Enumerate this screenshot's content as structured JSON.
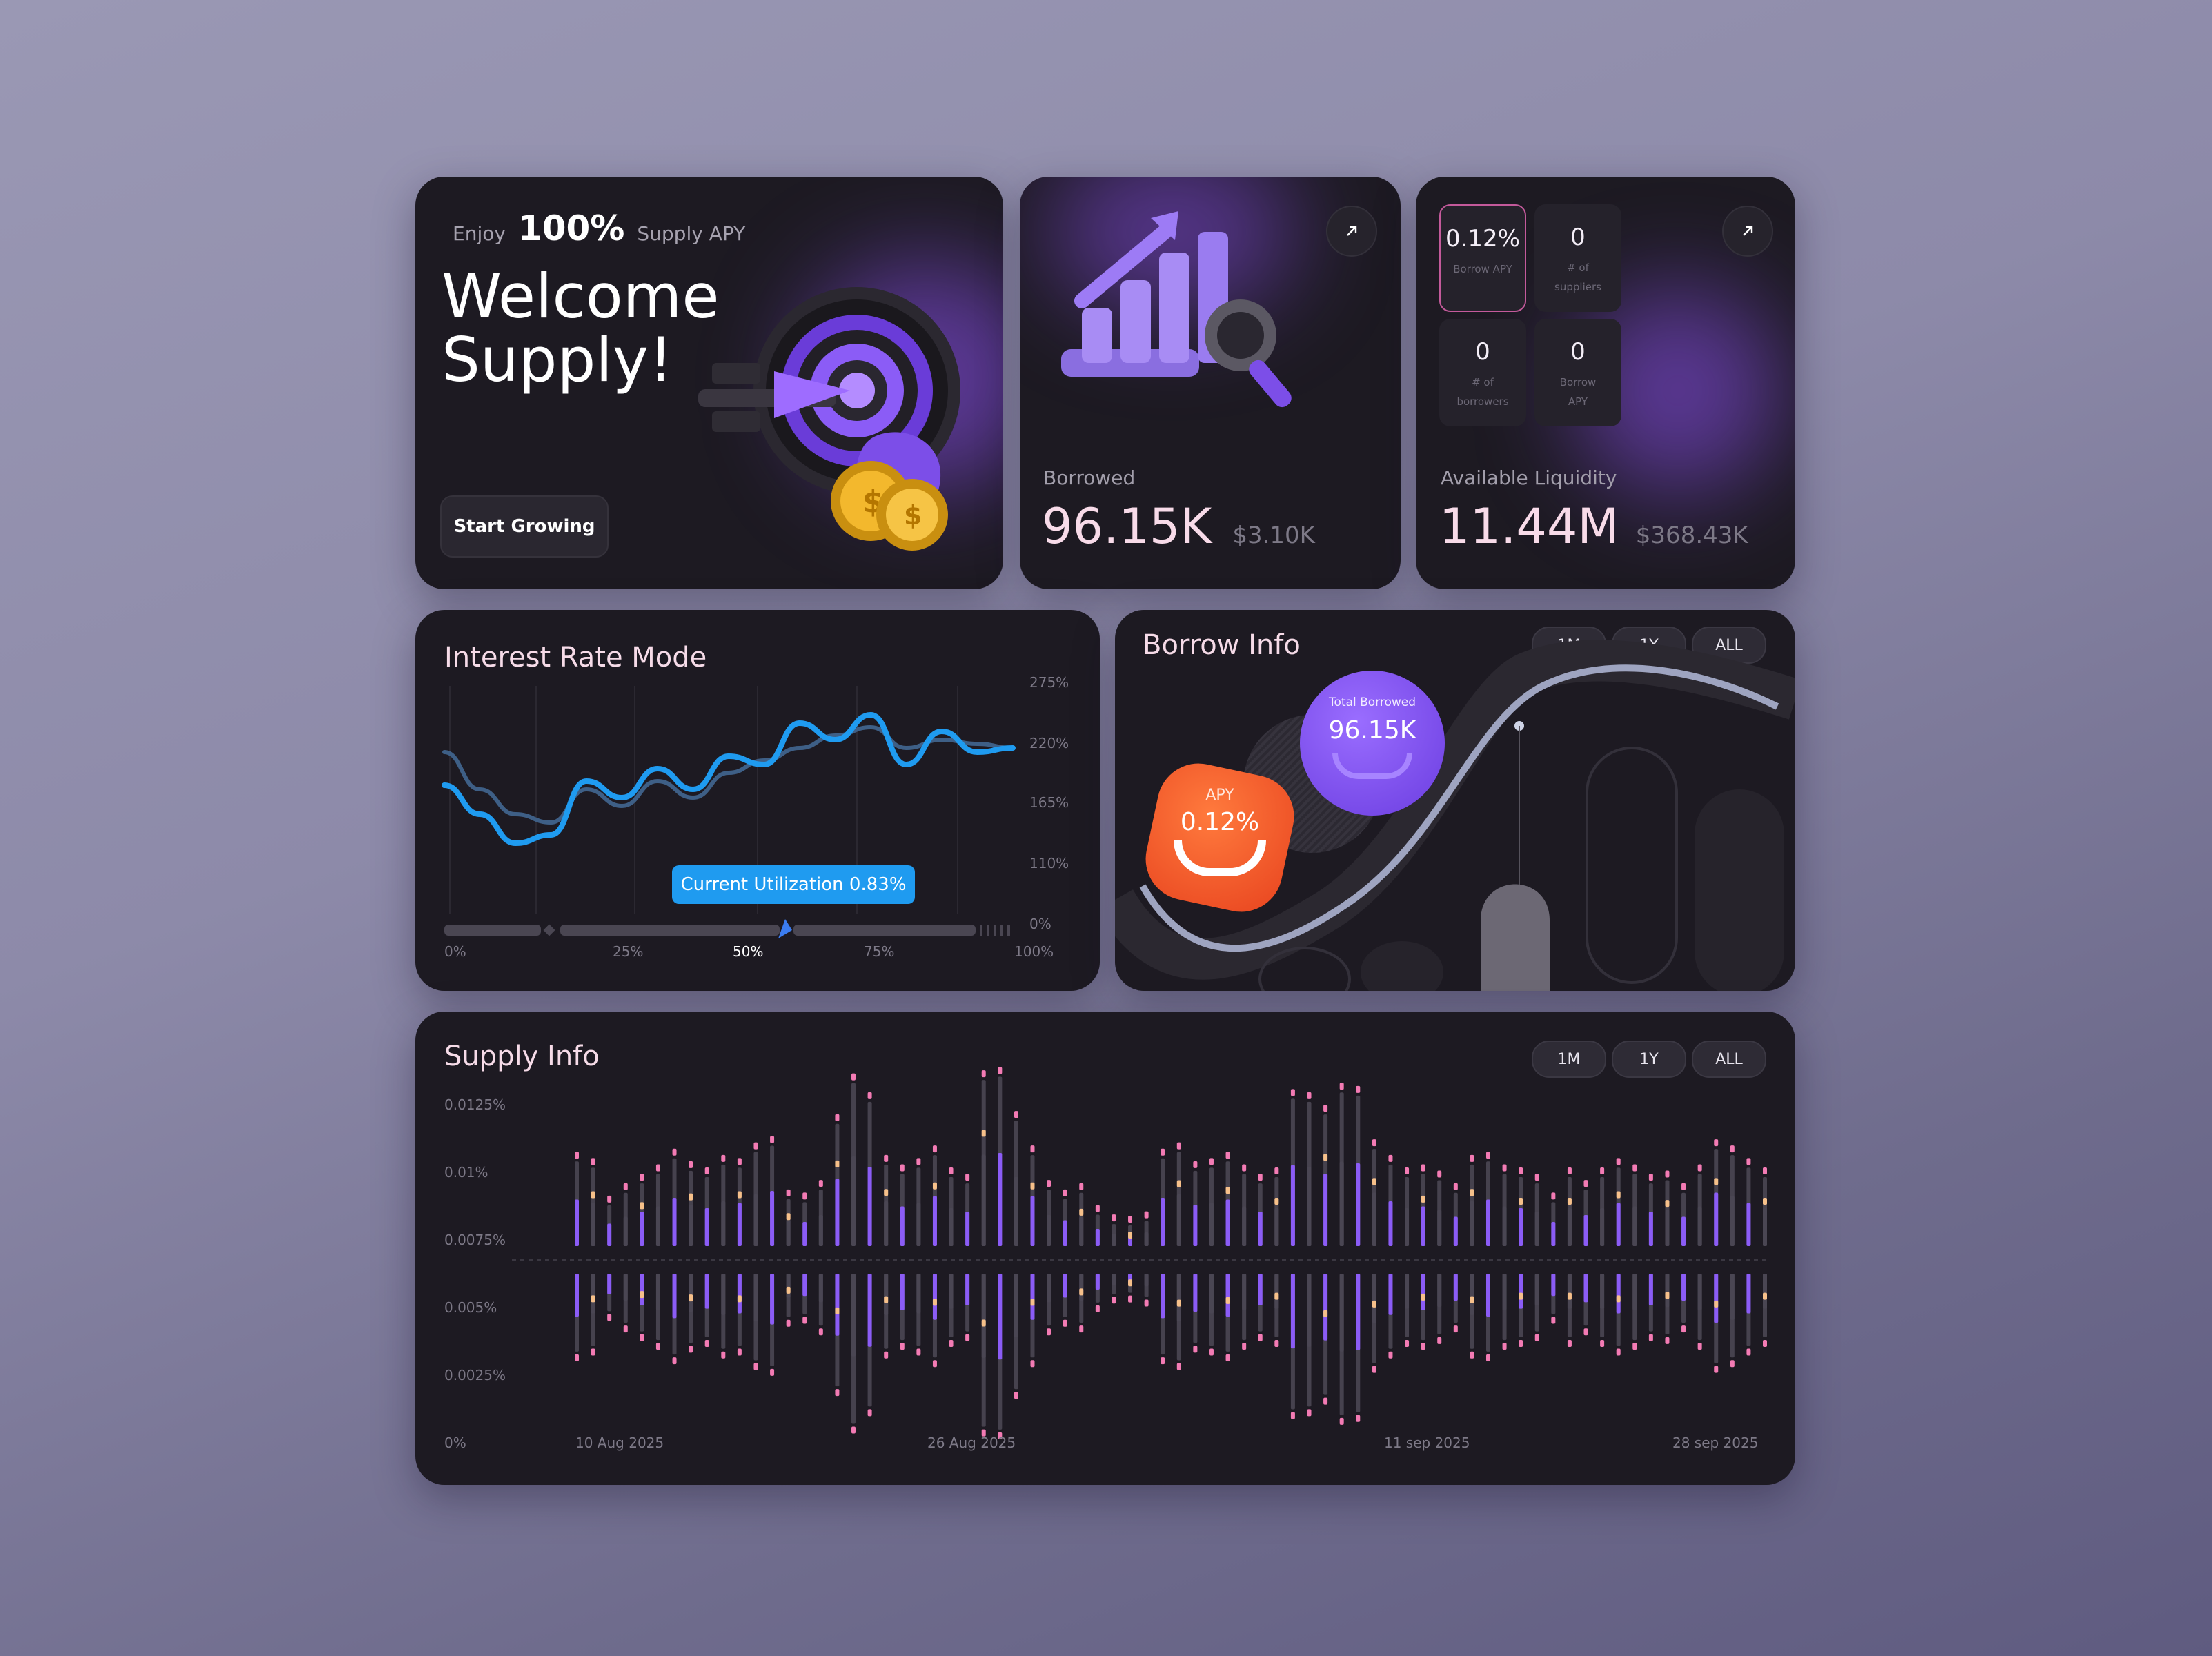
{
  "welcome": {
    "enjoy": "Enjoy",
    "apy_percent": "100%",
    "apy_label": "Supply APY",
    "title_line1": "Welcome",
    "title_line2": "Supply!",
    "button": "Start Growing"
  },
  "borrowed": {
    "label": "Borrowed",
    "value": "96.15K",
    "usd": "$3.10K"
  },
  "liquidity": {
    "label": "Available Liquidity",
    "value": "11.44M",
    "usd": "$368.43K",
    "stats": [
      {
        "value": "0.12%",
        "label": "Borrow APY"
      },
      {
        "value": "0",
        "label": "# of suppliers"
      },
      {
        "value": "0",
        "label": "# of borrowers"
      },
      {
        "value": "0",
        "label": "Borrow APY"
      }
    ]
  },
  "interest": {
    "title": "Interest Rate Mode",
    "tooltip": "Current Utilization 0.83%",
    "y_ticks": [
      "275%",
      "220%",
      "165%",
      "110%",
      "0%"
    ],
    "x_ticks": [
      "0%",
      "25%",
      "50%",
      "75%",
      "100%"
    ]
  },
  "borrow_info": {
    "title": "Borrow Info",
    "ranges": [
      "1M",
      "1Y",
      "ALL"
    ],
    "total_label": "Total Borrowed",
    "total_value": "96.15K",
    "apy_label": "APY",
    "apy_value": "0.12%"
  },
  "supply_info": {
    "title": "Supply Info",
    "ranges": [
      "1M",
      "1Y",
      "ALL"
    ],
    "y_ticks": [
      "0.0125%",
      "0.01%",
      "0.0075%",
      "0.005%",
      "0.0025%",
      "0%"
    ],
    "x_ticks": [
      "10 Aug 2025",
      "26 Aug 2025",
      "11 sep 2025",
      "28 sep 2025"
    ]
  },
  "colors": {
    "accent_purple": "#8b5cf6",
    "accent_blue": "#1f9bf0",
    "accent_orange": "#ff5a2c",
    "pink_value": "#f8d8e8"
  },
  "chart_data": [
    {
      "type": "line",
      "title": "Interest Rate Mode",
      "xlabel": "",
      "ylabel": "",
      "x_ticks": [
        "0%",
        "25%",
        "50%",
        "75%",
        "100%"
      ],
      "y_ticks": [
        "275%",
        "220%",
        "165%",
        "110%",
        "0%"
      ],
      "series": [
        {
          "values": [
            155,
            120,
            85,
            95,
            160,
            140,
            175,
            150,
            190,
            180,
            230,
            210,
            240,
            180,
            220,
            195,
            200
          ]
        },
        {
          "values": [
            195,
            150,
            120,
            110,
            150,
            130,
            160,
            140,
            170,
            185,
            200,
            215,
            225,
            200,
            210,
            205,
            200
          ]
        }
      ]
    },
    {
      "type": "bar",
      "title": "Supply Info",
      "x_ticks": [
        "10 Aug 2025",
        "26 Aug 2025",
        "11 sep 2025",
        "28 sep 2025"
      ],
      "ylim": [
        0,
        0.0125
      ],
      "series": [
        {
          "name": "",
          "values": [
            0.0062,
            0.006,
            0.0048,
            0.0052,
            0.0055,
            0.0058,
            0.0063,
            0.0059,
            0.0057,
            0.0061,
            0.006,
            0.0065,
            0.0067,
            0.005,
            0.0049,
            0.0053,
            0.0074,
            0.0087,
            0.0081,
            0.0061,
            0.0058,
            0.006,
            0.0064,
            0.0057,
            0.0055,
            0.0088,
            0.0089,
            0.0075,
            0.0064,
            0.0053,
            0.005,
            0.0052,
            0.0045,
            0.0042,
            0.0041,
            0.0043,
            0.0063,
            0.0065,
            0.0059,
            0.006,
            0.0062,
            0.0058,
            0.0055,
            0.0057,
            0.0082,
            0.0081,
            0.0077,
            0.0084,
            0.0083,
            0.0066,
            0.0061,
            0.0057,
            0.0058,
            0.0056,
            0.0052,
            0.0061,
            0.0062,
            0.0058,
            0.0057,
            0.0055,
            0.0049,
            0.0057,
            0.0053,
            0.0057,
            0.006,
            0.0058,
            0.0055,
            0.0056,
            0.0052,
            0.0058,
            0.0066,
            0.0064,
            0.006,
            0.0057
          ]
        }
      ]
    }
  ]
}
